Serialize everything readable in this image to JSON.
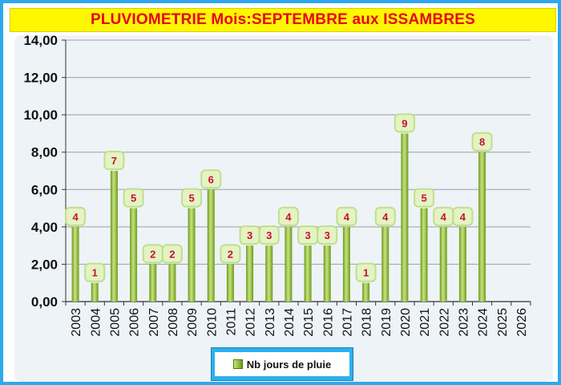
{
  "title": "PLUVIOMETRIE Mois:SEPTEMBRE aux ISSAMBRES",
  "legend": {
    "label": "Nb jours de pluie"
  },
  "colors": {
    "title_bg": "#fff700",
    "title_text": "#e8001c",
    "frame": "#2ea8ee",
    "bar_dark": "#6e9a1c",
    "bar_light": "#c6e47f",
    "label_bg": "#e4f3c4",
    "label_text": "#c8102e"
  },
  "chart_data": {
    "type": "bar",
    "categories": [
      "2003",
      "2004",
      "2005",
      "2006",
      "2007",
      "2008",
      "2009",
      "2010",
      "2011",
      "2012",
      "2013",
      "2014",
      "2015",
      "2016",
      "2017",
      "2018",
      "2019",
      "2020",
      "2021",
      "2022",
      "2023",
      "2024",
      "2025",
      "2026"
    ],
    "series": [
      {
        "name": "Nb jours de pluie",
        "values": [
          4,
          1,
          7,
          5,
          2,
          2,
          5,
          6,
          2,
          3,
          3,
          4,
          3,
          3,
          4,
          1,
          4,
          9,
          5,
          4,
          4,
          8,
          null,
          null
        ]
      }
    ],
    "ylim": [
      0,
      14
    ],
    "yticks": [
      "0,00",
      "2,00",
      "4,00",
      "6,00",
      "8,00",
      "10,00",
      "12,00",
      "14,00"
    ],
    "grid": true,
    "legend_position": "bottom"
  }
}
